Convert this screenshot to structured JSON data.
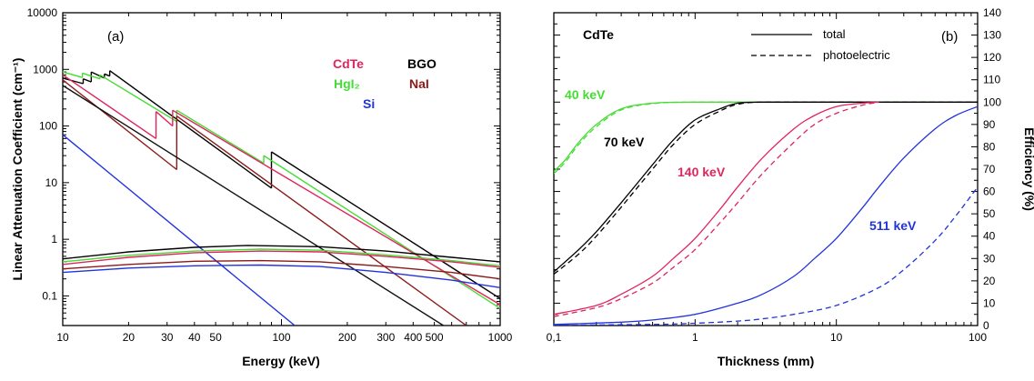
{
  "figure": {
    "background": "#ffffff"
  },
  "chart_data": [
    {
      "type": "line",
      "panel_label": "(a)",
      "xlabel": "Energy (keV)",
      "ylabel": "Linear Attenuation Coefficient (cm⁻¹)",
      "xscale": "log",
      "yscale": "log",
      "xlim": [
        10,
        1000
      ],
      "ylim": [
        0.03,
        10000
      ],
      "x_ticks": [
        {
          "v": 10,
          "label": "10"
        },
        {
          "v": 20,
          "label": "20"
        },
        {
          "v": 30,
          "label": "30"
        },
        {
          "v": 40,
          "label": "40"
        },
        {
          "v": 50,
          "label": "50"
        },
        {
          "v": 100,
          "label": "100"
        },
        {
          "v": 200,
          "label": "200"
        },
        {
          "v": 300,
          "label": "300"
        },
        {
          "v": 400,
          "label": "400"
        },
        {
          "v": 500,
          "label": "500"
        },
        {
          "v": 1000,
          "label": "1000"
        }
      ],
      "y_ticks": [
        {
          "v": 0.1,
          "label": "0.1"
        },
        {
          "v": 1,
          "label": "1"
        },
        {
          "v": 10,
          "label": "10"
        },
        {
          "v": 100,
          "label": "100"
        },
        {
          "v": 1000,
          "label": "1000"
        },
        {
          "v": 10000,
          "label": "10000"
        }
      ],
      "labels": [
        {
          "text": "CdTe",
          "color": "#e0245e"
        },
        {
          "text": "BGO",
          "color": "#000000"
        },
        {
          "text": "HgI₂",
          "color": "#44dd33"
        },
        {
          "text": "NaI",
          "color": "#8b1a1a"
        },
        {
          "text": "Si",
          "color": "#2233dd"
        }
      ],
      "series": [
        {
          "key": "BGO",
          "color": "#000000",
          "width": 1.4,
          "segments": [
            [
              [
                10,
                700
              ],
              [
                12.4,
                560
              ]
            ],
            [
              [
                12.4,
                680
              ],
              [
                13.5,
                600
              ]
            ],
            [
              [
                13.5,
                900
              ],
              [
                15.5,
                700
              ]
            ],
            [
              [
                15.5,
                830
              ],
              [
                16.4,
                760
              ]
            ],
            [
              [
                16.4,
                950
              ],
              [
                90,
                8
              ]
            ],
            [
              [
                90,
                35
              ],
              [
                1000,
                0.09
              ]
            ]
          ]
        },
        {
          "key": "HgI2",
          "color": "#44dd33",
          "width": 1.4,
          "segments": [
            [
              [
                10,
                900
              ],
              [
                12.3,
                720
              ]
            ],
            [
              [
                12.3,
                860
              ],
              [
                14.8,
                680
              ]
            ],
            [
              [
                14.8,
                800
              ],
              [
                33.2,
                120
              ]
            ],
            [
              [
                33.2,
                190
              ],
              [
                83,
                22
              ]
            ],
            [
              [
                83,
                30
              ],
              [
                1000,
                0.06
              ]
            ]
          ]
        },
        {
          "key": "CdTe",
          "color": "#e0245e",
          "width": 1.4,
          "segments": [
            [
              [
                10,
                800
              ],
              [
                26.7,
                60
              ]
            ],
            [
              [
                26.7,
                180
              ],
              [
                31.8,
                100
              ]
            ],
            [
              [
                31.8,
                190
              ],
              [
                1000,
                0.07
              ]
            ]
          ]
        },
        {
          "key": "NaI",
          "color": "#8b1a1a",
          "width": 1.4,
          "segments": [
            [
              [
                10,
                650
              ],
              [
                33.2,
                17
              ]
            ],
            [
              [
                33.2,
                150
              ],
              [
                700,
                0.03
              ]
            ]
          ]
        },
        {
          "key": "BGO_dark",
          "color": "#111111",
          "width": 1.4,
          "segments": [
            [
              [
                10,
                520
              ],
              [
                550,
                0.03
              ]
            ]
          ]
        },
        {
          "key": "Si",
          "color": "#2233dd",
          "width": 1.4,
          "segments": [
            [
              [
                10,
                70
              ],
              [
                115,
                0.03
              ]
            ]
          ]
        },
        {
          "key": "compton_BGO",
          "color": "#000000",
          "width": 1.4,
          "segments": [
            [
              [
                10,
                0.45
              ],
              [
                20,
                0.6
              ],
              [
                40,
                0.72
              ],
              [
                70,
                0.78
              ],
              [
                150,
                0.74
              ],
              [
                300,
                0.62
              ],
              [
                600,
                0.48
              ],
              [
                1000,
                0.4
              ]
            ]
          ]
        },
        {
          "key": "compton_HgI2",
          "color": "#44dd33",
          "width": 1.4,
          "segments": [
            [
              [
                10,
                0.4
              ],
              [
                20,
                0.52
              ],
              [
                40,
                0.62
              ],
              [
                80,
                0.67
              ],
              [
                150,
                0.64
              ],
              [
                300,
                0.53
              ],
              [
                600,
                0.42
              ],
              [
                1000,
                0.34
              ]
            ]
          ]
        },
        {
          "key": "compton_CdTe",
          "color": "#e0245e",
          "width": 1.4,
          "segments": [
            [
              [
                10,
                0.36
              ],
              [
                20,
                0.48
              ],
              [
                40,
                0.58
              ],
              [
                80,
                0.62
              ],
              [
                150,
                0.6
              ],
              [
                300,
                0.5
              ],
              [
                600,
                0.4
              ],
              [
                1000,
                0.32
              ]
            ]
          ]
        },
        {
          "key": "compton_NaI",
          "color": "#8b1a1a",
          "width": 1.4,
          "segments": [
            [
              [
                10,
                0.3
              ],
              [
                20,
                0.36
              ],
              [
                40,
                0.41
              ],
              [
                80,
                0.42
              ],
              [
                150,
                0.4
              ],
              [
                300,
                0.33
              ],
              [
                600,
                0.26
              ],
              [
                1000,
                0.2
              ]
            ]
          ]
        },
        {
          "key": "compton_Si",
          "color": "#2233dd",
          "width": 1.4,
          "segments": [
            [
              [
                10,
                0.26
              ],
              [
                20,
                0.31
              ],
              [
                40,
                0.34
              ],
              [
                80,
                0.35
              ],
              [
                150,
                0.33
              ],
              [
                300,
                0.26
              ],
              [
                600,
                0.19
              ],
              [
                1000,
                0.14
              ]
            ]
          ]
        }
      ]
    },
    {
      "type": "line",
      "panel_label": "(b)",
      "material_label": "CdTe",
      "xlabel": "Thickness (mm)",
      "ylabel": "Efficiency (%)",
      "xscale": "log",
      "yscale": "linear",
      "xlim": [
        0.1,
        100
      ],
      "ylim": [
        0,
        140
      ],
      "x_ticks": [
        {
          "v": 0.1,
          "label": "0,1"
        },
        {
          "v": 1,
          "label": "1"
        },
        {
          "v": 10,
          "label": "10"
        },
        {
          "v": 100,
          "label": "100"
        }
      ],
      "y_ticks": [
        {
          "v": 0,
          "label": "0"
        },
        {
          "v": 10,
          "label": "10"
        },
        {
          "v": 20,
          "label": "20"
        },
        {
          "v": 30,
          "label": "30"
        },
        {
          "v": 40,
          "label": "40"
        },
        {
          "v": 50,
          "label": "50"
        },
        {
          "v": 60,
          "label": "60"
        },
        {
          "v": 70,
          "label": "70"
        },
        {
          "v": 80,
          "label": "80"
        },
        {
          "v": 90,
          "label": "90"
        },
        {
          "v": 100,
          "label": "100"
        },
        {
          "v": 110,
          "label": "110"
        },
        {
          "v": 120,
          "label": "120"
        },
        {
          "v": 130,
          "label": "130"
        },
        {
          "v": 140,
          "label": "140"
        }
      ],
      "legend": [
        {
          "label": "total",
          "style": "solid"
        },
        {
          "label": "photoelectric",
          "style": "dashed"
        }
      ],
      "series": [
        {
          "name": "40 keV",
          "color": "#44dd33",
          "label_at": [
            0.1,
            100
          ],
          "total": [
            [
              0.1,
              69
            ],
            [
              0.12,
              74
            ],
            [
              0.15,
              82
            ],
            [
              0.2,
              90
            ],
            [
              0.3,
              97
            ],
            [
              0.5,
              99.5
            ],
            [
              1,
              100
            ],
            [
              10,
              100
            ],
            [
              100,
              100
            ]
          ],
          "photo": [
            [
              0.1,
              68
            ],
            [
              0.12,
              73
            ],
            [
              0.15,
              81
            ],
            [
              0.2,
              89
            ],
            [
              0.3,
              96.5
            ],
            [
              0.5,
              99.3
            ],
            [
              1,
              100
            ],
            [
              10,
              100
            ],
            [
              100,
              100
            ]
          ]
        },
        {
          "name": "70 keV",
          "color": "#000000",
          "label_at": [
            0.2,
            83
          ],
          "total": [
            [
              0.1,
              24
            ],
            [
              0.15,
              34
            ],
            [
              0.2,
              42
            ],
            [
              0.3,
              55
            ],
            [
              0.5,
              72
            ],
            [
              0.7,
              83
            ],
            [
              1,
              92
            ],
            [
              1.5,
              97
            ],
            [
              2,
              99.5
            ],
            [
              3,
              100
            ],
            [
              10,
              100
            ],
            [
              100,
              100
            ]
          ],
          "photo": [
            [
              0.1,
              23
            ],
            [
              0.15,
              32
            ],
            [
              0.2,
              40
            ],
            [
              0.3,
              53
            ],
            [
              0.5,
              70
            ],
            [
              0.7,
              81
            ],
            [
              1,
              90
            ],
            [
              1.5,
              96
            ],
            [
              2,
              99
            ],
            [
              3,
              100
            ],
            [
              10,
              100
            ],
            [
              100,
              100
            ]
          ]
        },
        {
          "name": "140 keV",
          "color": "#e0245e",
          "label_at": [
            0.9,
            70
          ],
          "total": [
            [
              0.1,
              5
            ],
            [
              0.2,
              9
            ],
            [
              0.3,
              14
            ],
            [
              0.5,
              22
            ],
            [
              0.7,
              30
            ],
            [
              1,
              39
            ],
            [
              1.5,
              52
            ],
            [
              2,
              62
            ],
            [
              3,
              75
            ],
            [
              5,
              88
            ],
            [
              7,
              94
            ],
            [
              10,
              98
            ],
            [
              15,
              99.5
            ],
            [
              20,
              100
            ]
          ],
          "photo": [
            [
              0.1,
              4
            ],
            [
              0.2,
              8
            ],
            [
              0.3,
              12
            ],
            [
              0.5,
              19
            ],
            [
              0.7,
              26
            ],
            [
              1,
              34
            ],
            [
              1.5,
              46
            ],
            [
              2,
              55
            ],
            [
              3,
              68
            ],
            [
              5,
              82
            ],
            [
              7,
              90
            ],
            [
              10,
              95
            ],
            [
              15,
              98.5
            ],
            [
              20,
              100
            ]
          ]
        },
        {
          "name": "511 keV",
          "color": "#2233dd",
          "label_at": [
            20,
            44
          ],
          "total": [
            [
              0.1,
              0.5
            ],
            [
              0.3,
              1.5
            ],
            [
              0.5,
              2.5
            ],
            [
              1,
              5
            ],
            [
              2,
              10
            ],
            [
              3,
              14
            ],
            [
              5,
              22
            ],
            [
              7,
              30
            ],
            [
              10,
              39
            ],
            [
              15,
              52
            ],
            [
              20,
              62
            ],
            [
              30,
              75
            ],
            [
              50,
              88
            ],
            [
              70,
              94
            ],
            [
              100,
              98
            ]
          ],
          "photo": [
            [
              0.1,
              0.1
            ],
            [
              0.5,
              0.5
            ],
            [
              1,
              1
            ],
            [
              2,
              2
            ],
            [
              3,
              3
            ],
            [
              5,
              5
            ],
            [
              10,
              9
            ],
            [
              20,
              17
            ],
            [
              30,
              25
            ],
            [
              50,
              38
            ],
            [
              70,
              49
            ],
            [
              100,
              62
            ]
          ]
        }
      ]
    }
  ]
}
